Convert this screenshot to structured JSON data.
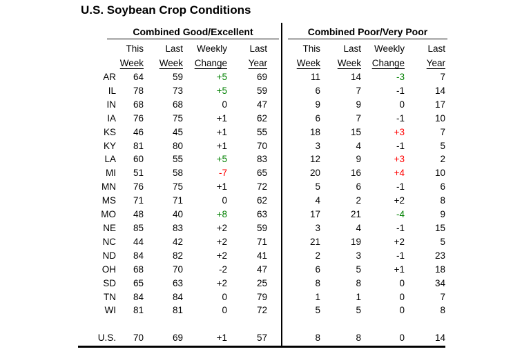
{
  "title": "U.S. Soybean Crop Conditions",
  "sections": {
    "good": {
      "title": "Combined Good/Excellent"
    },
    "poor": {
      "title": "Combined Poor/Very Poor"
    }
  },
  "columns": {
    "line1": [
      "This",
      "Last",
      "Weekly",
      "Last"
    ],
    "line2": [
      "Week",
      "Week",
      "Change",
      "Year"
    ]
  },
  "colors": {
    "green": "#008000",
    "red": "#FF0000",
    "black": "#000000"
  },
  "rows": [
    {
      "state": "AR",
      "good": {
        "this": "64",
        "last": "59",
        "change": "+5",
        "change_color": "green",
        "year": "69"
      },
      "poor": {
        "this": "11",
        "last": "14",
        "change": "-3",
        "change_color": "green",
        "year": "7"
      }
    },
    {
      "state": "IL",
      "good": {
        "this": "78",
        "last": "73",
        "change": "+5",
        "change_color": "green",
        "year": "59"
      },
      "poor": {
        "this": "6",
        "last": "7",
        "change": "-1",
        "change_color": "black",
        "year": "14"
      }
    },
    {
      "state": "IN",
      "good": {
        "this": "68",
        "last": "68",
        "change": "0",
        "change_color": "black",
        "year": "47"
      },
      "poor": {
        "this": "9",
        "last": "9",
        "change": "0",
        "change_color": "black",
        "year": "17"
      }
    },
    {
      "state": "IA",
      "good": {
        "this": "76",
        "last": "75",
        "change": "+1",
        "change_color": "black",
        "year": "62"
      },
      "poor": {
        "this": "6",
        "last": "7",
        "change": "-1",
        "change_color": "black",
        "year": "10"
      }
    },
    {
      "state": "KS",
      "good": {
        "this": "46",
        "last": "45",
        "change": "+1",
        "change_color": "black",
        "year": "55"
      },
      "poor": {
        "this": "18",
        "last": "15",
        "change": "+3",
        "change_color": "red",
        "year": "7"
      }
    },
    {
      "state": "KY",
      "good": {
        "this": "81",
        "last": "80",
        "change": "+1",
        "change_color": "black",
        "year": "70"
      },
      "poor": {
        "this": "3",
        "last": "4",
        "change": "-1",
        "change_color": "black",
        "year": "5"
      }
    },
    {
      "state": "LA",
      "good": {
        "this": "60",
        "last": "55",
        "change": "+5",
        "change_color": "green",
        "year": "83"
      },
      "poor": {
        "this": "12",
        "last": "9",
        "change": "+3",
        "change_color": "red",
        "year": "2"
      }
    },
    {
      "state": "MI",
      "good": {
        "this": "51",
        "last": "58",
        "change": "-7",
        "change_color": "red",
        "year": "65"
      },
      "poor": {
        "this": "20",
        "last": "16",
        "change": "+4",
        "change_color": "red",
        "year": "10"
      }
    },
    {
      "state": "MN",
      "good": {
        "this": "76",
        "last": "75",
        "change": "+1",
        "change_color": "black",
        "year": "72"
      },
      "poor": {
        "this": "5",
        "last": "6",
        "change": "-1",
        "change_color": "black",
        "year": "6"
      }
    },
    {
      "state": "MS",
      "good": {
        "this": "71",
        "last": "71",
        "change": "0",
        "change_color": "black",
        "year": "62"
      },
      "poor": {
        "this": "4",
        "last": "2",
        "change": "+2",
        "change_color": "black",
        "year": "8"
      }
    },
    {
      "state": "MO",
      "good": {
        "this": "48",
        "last": "40",
        "change": "+8",
        "change_color": "green",
        "year": "63"
      },
      "poor": {
        "this": "17",
        "last": "21",
        "change": "-4",
        "change_color": "green",
        "year": "9"
      }
    },
    {
      "state": "NE",
      "good": {
        "this": "85",
        "last": "83",
        "change": "+2",
        "change_color": "black",
        "year": "59"
      },
      "poor": {
        "this": "3",
        "last": "4",
        "change": "-1",
        "change_color": "black",
        "year": "15"
      }
    },
    {
      "state": "NC",
      "good": {
        "this": "44",
        "last": "42",
        "change": "+2",
        "change_color": "black",
        "year": "71"
      },
      "poor": {
        "this": "21",
        "last": "19",
        "change": "+2",
        "change_color": "black",
        "year": "5"
      }
    },
    {
      "state": "ND",
      "good": {
        "this": "84",
        "last": "82",
        "change": "+2",
        "change_color": "black",
        "year": "41"
      },
      "poor": {
        "this": "2",
        "last": "3",
        "change": "-1",
        "change_color": "black",
        "year": "23"
      }
    },
    {
      "state": "OH",
      "good": {
        "this": "68",
        "last": "70",
        "change": "-2",
        "change_color": "black",
        "year": "47"
      },
      "poor": {
        "this": "6",
        "last": "5",
        "change": "+1",
        "change_color": "black",
        "year": "18"
      }
    },
    {
      "state": "SD",
      "good": {
        "this": "65",
        "last": "63",
        "change": "+2",
        "change_color": "black",
        "year": "25"
      },
      "poor": {
        "this": "8",
        "last": "8",
        "change": "0",
        "change_color": "black",
        "year": "34"
      }
    },
    {
      "state": "TN",
      "good": {
        "this": "84",
        "last": "84",
        "change": "0",
        "change_color": "black",
        "year": "79"
      },
      "poor": {
        "this": "1",
        "last": "1",
        "change": "0",
        "change_color": "black",
        "year": "7"
      }
    },
    {
      "state": "WI",
      "good": {
        "this": "81",
        "last": "81",
        "change": "0",
        "change_color": "black",
        "year": "72"
      },
      "poor": {
        "this": "5",
        "last": "5",
        "change": "0",
        "change_color": "black",
        "year": "8"
      }
    }
  ],
  "us": {
    "state": "U.S.",
    "good": {
      "this": "70",
      "last": "69",
      "change": "+1",
      "change_color": "black",
      "year": "57"
    },
    "poor": {
      "this": "8",
      "last": "8",
      "change": "0",
      "change_color": "black",
      "year": "14"
    }
  }
}
